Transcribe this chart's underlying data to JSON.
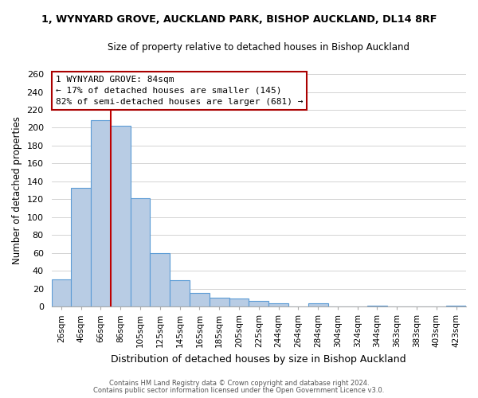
{
  "title": "1, WYNYARD GROVE, AUCKLAND PARK, BISHOP AUCKLAND, DL14 8RF",
  "subtitle": "Size of property relative to detached houses in Bishop Auckland",
  "xlabel": "Distribution of detached houses by size in Bishop Auckland",
  "ylabel": "Number of detached properties",
  "bar_labels": [
    "26sqm",
    "46sqm",
    "66sqm",
    "86sqm",
    "105sqm",
    "125sqm",
    "145sqm",
    "165sqm",
    "185sqm",
    "205sqm",
    "225sqm",
    "244sqm",
    "264sqm",
    "284sqm",
    "304sqm",
    "324sqm",
    "344sqm",
    "363sqm",
    "383sqm",
    "403sqm",
    "423sqm"
  ],
  "bar_values": [
    30,
    133,
    208,
    202,
    121,
    60,
    29,
    15,
    10,
    9,
    6,
    4,
    0,
    4,
    0,
    0,
    1,
    0,
    0,
    0,
    1
  ],
  "bar_color": "#b8cce4",
  "bar_edge_color": "#5b9bd5",
  "vline_color": "#c00000",
  "vline_bar_index": 3,
  "ylim": [
    0,
    260
  ],
  "yticks": [
    0,
    20,
    40,
    60,
    80,
    100,
    120,
    140,
    160,
    180,
    200,
    220,
    240,
    260
  ],
  "annotation_title": "1 WYNYARD GROVE: 84sqm",
  "annotation_line1": "← 17% of detached houses are smaller (145)",
  "annotation_line2": "82% of semi-detached houses are larger (681) →",
  "annotation_box_color": "#ffffff",
  "annotation_box_edge": "#aa0000",
  "footer1": "Contains HM Land Registry data © Crown copyright and database right 2024.",
  "footer2": "Contains public sector information licensed under the Open Government Licence v3.0.",
  "grid_color": "#cccccc",
  "background_color": "#ffffff"
}
